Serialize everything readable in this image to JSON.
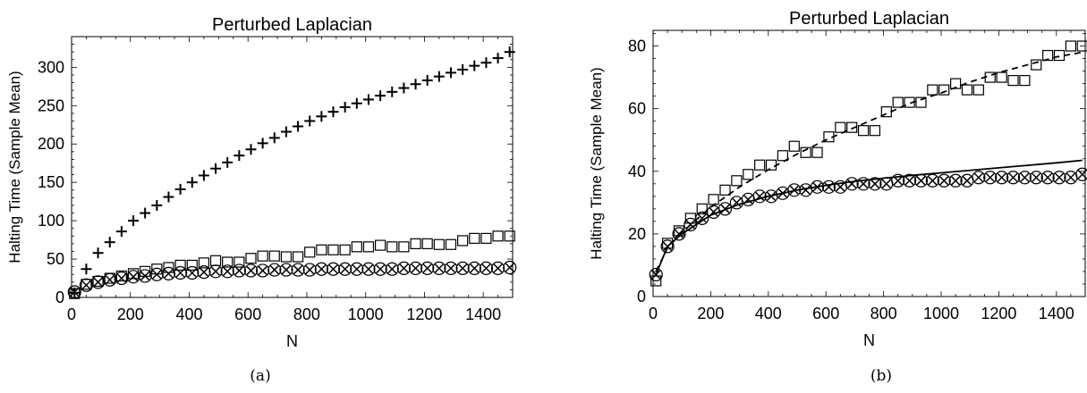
{
  "chart_data": [
    {
      "type": "scatter",
      "title": "Perturbed Laplacian",
      "xlabel": "N",
      "ylabel": "Halting Time (Sample Mean)",
      "caption": "(a)",
      "xlim": [
        0,
        1500
      ],
      "ylim": [
        0,
        340
      ],
      "xticks": [
        0,
        200,
        400,
        600,
        800,
        1000,
        1200,
        1400
      ],
      "yticks": [
        0,
        50,
        100,
        150,
        200,
        250,
        300
      ],
      "grid": false,
      "series": [
        {
          "marker": "plus",
          "x": [
            10,
            50,
            90,
            130,
            170,
            210,
            250,
            290,
            330,
            370,
            410,
            450,
            490,
            530,
            570,
            610,
            650,
            690,
            730,
            770,
            810,
            850,
            890,
            930,
            970,
            1010,
            1050,
            1090,
            1130,
            1170,
            1210,
            1250,
            1290,
            1330,
            1370,
            1410,
            1450,
            1490
          ],
          "values": [
            6,
            37,
            58,
            72,
            86,
            100,
            110,
            120,
            131,
            141,
            150,
            159,
            168,
            176,
            185,
            193,
            201,
            208,
            216,
            223,
            230,
            236,
            242,
            248,
            253,
            258,
            263,
            268,
            273,
            278,
            283,
            288,
            293,
            297,
            302,
            306,
            312,
            320
          ]
        },
        {
          "marker": "square",
          "x": [
            10,
            50,
            90,
            130,
            170,
            210,
            250,
            290,
            330,
            370,
            410,
            450,
            490,
            530,
            570,
            610,
            650,
            690,
            730,
            770,
            810,
            850,
            890,
            930,
            970,
            1010,
            1050,
            1090,
            1130,
            1170,
            1210,
            1250,
            1290,
            1330,
            1370,
            1410,
            1450,
            1490
          ],
          "values": [
            5,
            17,
            21,
            25,
            28,
            31,
            34,
            37,
            39,
            42,
            42,
            45,
            48,
            46,
            46,
            51,
            54,
            54,
            53,
            53,
            59,
            62,
            62,
            62,
            66,
            66,
            68,
            66,
            66,
            70,
            70,
            69,
            69,
            74,
            77,
            77,
            80,
            80
          ]
        },
        {
          "marker": "circle",
          "x": [
            10,
            50,
            90,
            130,
            170,
            210,
            250,
            290,
            330,
            370,
            410,
            450,
            490,
            530,
            570,
            610,
            650,
            690,
            730,
            770,
            810,
            850,
            890,
            930,
            970,
            1010,
            1050,
            1090,
            1130,
            1170,
            1210,
            1250,
            1290,
            1330,
            1370,
            1410,
            1450,
            1490
          ],
          "values": [
            7,
            16,
            20,
            23,
            25,
            27,
            28,
            30,
            31,
            32,
            32,
            33,
            34,
            34,
            35,
            35,
            35,
            36,
            36,
            36,
            36,
            37,
            37,
            37,
            37,
            37,
            37,
            37,
            38,
            38,
            38,
            38,
            38,
            38,
            38,
            38,
            38,
            39
          ]
        },
        {
          "marker": "cross",
          "x": [
            10,
            50,
            90,
            130,
            170,
            210,
            250,
            290,
            330,
            370,
            410,
            450,
            490,
            530,
            570,
            610,
            650,
            690,
            730,
            770,
            810,
            850,
            890,
            930,
            970,
            1010,
            1050,
            1090,
            1130,
            1170,
            1210,
            1250,
            1290,
            1330,
            1370,
            1410,
            1450,
            1490
          ],
          "values": [
            7,
            16,
            20,
            23,
            25,
            27,
            28,
            30,
            31,
            32,
            32,
            33,
            34,
            34,
            35,
            35,
            35,
            36,
            36,
            36,
            36,
            37,
            37,
            37,
            37,
            37,
            37,
            37,
            38,
            38,
            38,
            38,
            38,
            38,
            38,
            38,
            38,
            39
          ]
        }
      ]
    },
    {
      "type": "scatter",
      "title": "Perturbed Laplacian",
      "xlabel": "N",
      "ylabel": "Halting Time (Sample Mean)",
      "caption": "(b)",
      "xlim": [
        0,
        1500
      ],
      "ylim": [
        0,
        85
      ],
      "xticks": [
        0,
        200,
        400,
        600,
        800,
        1000,
        1200,
        1400
      ],
      "yticks": [
        0,
        20,
        40,
        60,
        80
      ],
      "grid": false,
      "series": [
        {
          "marker": "square",
          "x": [
            10,
            50,
            90,
            130,
            170,
            210,
            250,
            290,
            330,
            370,
            410,
            450,
            490,
            530,
            570,
            610,
            650,
            690,
            730,
            770,
            810,
            850,
            890,
            930,
            970,
            1010,
            1050,
            1090,
            1130,
            1170,
            1210,
            1250,
            1290,
            1330,
            1370,
            1410,
            1450,
            1490
          ],
          "values": [
            5,
            17,
            21,
            25,
            28,
            31,
            34,
            37,
            39,
            42,
            42,
            45,
            48,
            46,
            46,
            51,
            54,
            54,
            53,
            53,
            59,
            62,
            62,
            62,
            66,
            66,
            68,
            66,
            66,
            70,
            70,
            69,
            69,
            74,
            77,
            77,
            80,
            80
          ]
        },
        {
          "marker": "circle",
          "x": [
            10,
            50,
            90,
            130,
            170,
            210,
            250,
            290,
            330,
            370,
            410,
            450,
            490,
            530,
            570,
            610,
            650,
            690,
            730,
            770,
            810,
            850,
            890,
            930,
            970,
            1010,
            1050,
            1090,
            1130,
            1170,
            1210,
            1250,
            1290,
            1330,
            1370,
            1410,
            1450,
            1490
          ],
          "values": [
            7,
            16,
            20,
            23,
            25,
            27,
            28,
            30,
            31,
            32,
            32,
            33,
            34,
            34,
            35,
            35,
            35,
            36,
            36,
            36,
            36,
            37,
            37,
            37,
            37,
            37,
            37,
            37,
            38,
            38,
            38,
            38,
            38,
            38,
            38,
            38,
            38,
            39
          ]
        },
        {
          "marker": "cross",
          "x": [
            10,
            50,
            90,
            130,
            170,
            210,
            250,
            290,
            330,
            370,
            410,
            450,
            490,
            530,
            570,
            610,
            650,
            690,
            730,
            770,
            810,
            850,
            890,
            930,
            970,
            1010,
            1050,
            1090,
            1130,
            1170,
            1210,
            1250,
            1290,
            1330,
            1370,
            1410,
            1450,
            1490
          ],
          "values": [
            7,
            16,
            20,
            23,
            25,
            27,
            28,
            30,
            31,
            32,
            32,
            33,
            34,
            34,
            35,
            35,
            35,
            36,
            36,
            36,
            36,
            37,
            37,
            37,
            37,
            37,
            37,
            37,
            38,
            38,
            38,
            38,
            38,
            38,
            38,
            38,
            38,
            39
          ]
        },
        {
          "line_style": "dashed",
          "x": [
            10,
            50,
            100,
            200,
            300,
            400,
            500,
            600,
            700,
            800,
            900,
            1000,
            1100,
            1200,
            1300,
            1400,
            1490
          ],
          "values": [
            8,
            15.5,
            20.5,
            28.5,
            35,
            40.5,
            45.5,
            50,
            54,
            58,
            62,
            65,
            68.5,
            71.5,
            74,
            76.5,
            78
          ]
        },
        {
          "line_style": "solid",
          "x": [
            10,
            50,
            100,
            200,
            300,
            400,
            500,
            600,
            700,
            800,
            900,
            1000,
            1100,
            1200,
            1300,
            1400,
            1490
          ],
          "values": [
            7,
            16,
            20,
            26,
            29.5,
            32,
            34,
            35.5,
            36.8,
            37.8,
            38.7,
            39.5,
            40.3,
            41.1,
            41.9,
            42.7,
            43.5
          ]
        }
      ]
    }
  ]
}
